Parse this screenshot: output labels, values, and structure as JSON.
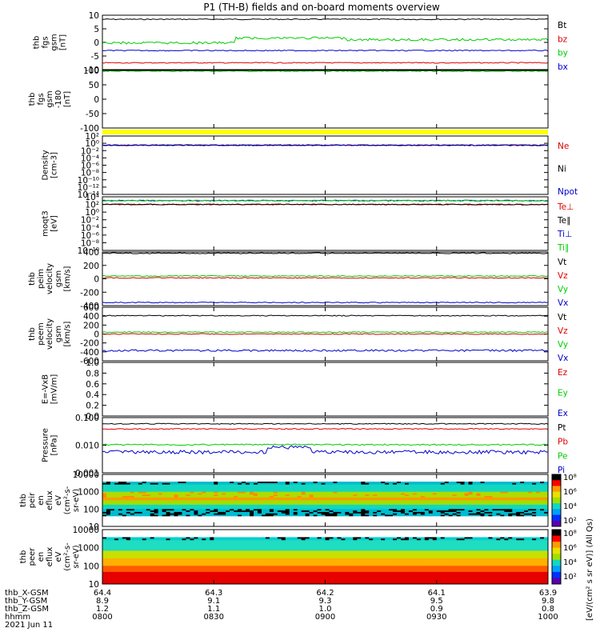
{
  "chart_data": {
    "type": "line",
    "title": "P1 (TH-B) fields and on-board moments overview",
    "colors": {
      "black": "#000000",
      "red": "#dd0000",
      "green": "#00cc00",
      "blue": "#0000cc",
      "yellow": "#ffff00"
    },
    "x_axis": {
      "ticks": [
        "0800",
        "0830",
        "0900",
        "0930",
        "1000"
      ],
      "ephemeris": [
        {
          "label": "thb_X-GSM",
          "values": [
            "64.4",
            "64.3",
            "64.2",
            "64.1",
            "63.9"
          ]
        },
        {
          "label": "thb_Y-GSM",
          "values": [
            "8.9",
            "9.1",
            "9.3",
            "9.5",
            "9.8"
          ]
        },
        {
          "label": "thb_Z-GSM",
          "values": [
            "1.2",
            "1.1",
            "1.0",
            "0.9",
            "0.8"
          ]
        },
        {
          "label": "hhmm",
          "values": [
            "0800",
            "0830",
            "0900",
            "0930",
            "1000"
          ]
        }
      ],
      "date": "2021 Jun 11"
    },
    "panels": [
      {
        "id": "fgs",
        "ylabel_lines": [
          "thb",
          "fgs",
          "gsm",
          "[nT]"
        ],
        "yscale": "linear",
        "ylim": [
          -10,
          10
        ],
        "yticks": [
          "10",
          "5",
          "0",
          "-5",
          "-10"
        ],
        "series": [
          {
            "name": "Bt",
            "color": "#000000",
            "level": 8.5
          },
          {
            "name": "bz",
            "color": "#dd0000",
            "level": -7.5
          },
          {
            "name": "by",
            "color": "#00cc00",
            "level": 1.0
          },
          {
            "name": "bx",
            "color": "#0000cc",
            "level": -3.0
          }
        ]
      },
      {
        "id": "fgs_dsl",
        "ylabel_lines": [
          "thb",
          "fgs",
          "gsm",
          "-180",
          "[nT]"
        ],
        "yscale": "linear",
        "ylim": [
          -125,
          100
        ],
        "yticks": [
          "100",
          "50",
          "0",
          "-50",
          "-100"
        ],
        "series": [
          {
            "name": "",
            "color": "#00cc00",
            "level": 97
          }
        ]
      },
      {
        "id": "density",
        "ylabel_lines": [
          "Density",
          "[cm-3]"
        ],
        "yscale": "log",
        "yticks": [
          "10²",
          "10⁰",
          "10⁻²",
          "10⁻⁴",
          "10⁻⁶",
          "10⁻⁸",
          "10⁻¹⁰",
          "10⁻¹²",
          "10⁻¹⁴"
        ],
        "series": [
          {
            "name": "Ne",
            "color": "#dd0000",
            "level": 0.3
          },
          {
            "name": "Ni",
            "color": "#000000",
            "level": 0.3
          },
          {
            "name": "Npot",
            "color": "#0000cc",
            "level": 0.3
          }
        ]
      },
      {
        "id": "temp",
        "ylabel_lines": [
          "moqt3",
          "[eV]"
        ],
        "yscale": "log",
        "yticks": [
          "10⁴",
          "10²",
          "10⁰",
          "10⁻²",
          "10⁻⁴",
          "10⁻⁶",
          "10⁻⁸",
          "10⁻¹⁰"
        ],
        "series": [
          {
            "name": "Te⊥",
            "color": "#dd0000",
            "level": 100
          },
          {
            "name": "Te∥",
            "color": "#000000",
            "level": 100
          },
          {
            "name": "Ti⊥",
            "color": "#0000cc",
            "level": 1000
          },
          {
            "name": "Ti∥",
            "color": "#00cc00",
            "level": 1000
          }
        ]
      },
      {
        "id": "peim_vel",
        "ylabel_lines": [
          "thb",
          "peim",
          "velocity",
          "gsm",
          "[km/s]"
        ],
        "yscale": "linear",
        "ylim": [
          -450,
          420
        ],
        "yticks": [
          "400",
          "200",
          "0",
          "-200",
          "-400"
        ],
        "series": [
          {
            "name": "Vt",
            "color": "#000000",
            "level": 400
          },
          {
            "name": "Vz",
            "color": "#dd0000",
            "level": 0
          },
          {
            "name": "Vy",
            "color": "#00cc00",
            "level": 30
          },
          {
            "name": "Vx",
            "color": "#0000cc",
            "level": -400
          }
        ]
      },
      {
        "id": "peem_vel",
        "ylabel_lines": [
          "thb",
          "peem",
          "velocity",
          "gsm",
          "[km/s]"
        ],
        "yscale": "linear",
        "ylim": [
          -600,
          600
        ],
        "yticks": [
          "600",
          "400",
          "200",
          "0",
          "-200",
          "-400",
          "-600"
        ],
        "series": [
          {
            "name": "Vt",
            "color": "#000000",
            "level": 410
          },
          {
            "name": "Vz",
            "color": "#dd0000",
            "level": 0
          },
          {
            "name": "Vy",
            "color": "#00cc00",
            "level": 40
          },
          {
            "name": "Vx",
            "color": "#0000cc",
            "level": -370
          }
        ]
      },
      {
        "id": "efield",
        "ylabel_lines": [
          "E=-VxB",
          "[mV/m]"
        ],
        "yscale": "linear",
        "ylim": [
          0,
          1
        ],
        "yticks": [
          "1.0",
          "0.8",
          "0.6",
          "0.4",
          "0.2",
          "0.0"
        ],
        "series": [
          {
            "name": "Ez",
            "color": "#dd0000",
            "level": null
          },
          {
            "name": "Ey",
            "color": "#00cc00",
            "level": null
          },
          {
            "name": "Ex",
            "color": "#0000cc",
            "level": null
          }
        ]
      },
      {
        "id": "pressure",
        "ylabel_lines": [
          "Pressure",
          "[nPa]"
        ],
        "yscale": "log",
        "ylim": [
          0.001,
          0.12
        ],
        "yticks": [
          "0.100",
          "0.010",
          "0.001"
        ],
        "series": [
          {
            "name": "Pt",
            "color": "#000000",
            "level": 0.07
          },
          {
            "name": "Pb",
            "color": "#dd0000",
            "level": 0.045
          },
          {
            "name": "Pe",
            "color": "#00cc00",
            "level": 0.0115
          },
          {
            "name": "Pi",
            "color": "#0000cc",
            "level": 0.006
          }
        ]
      },
      {
        "id": "peir_spec",
        "type": "heatmap",
        "ylabel_lines": [
          "thb",
          "peir",
          "en",
          "eflux",
          "eV",
          "(cm²-s-",
          "sr-eV)"
        ],
        "yscale": "log",
        "ylim": [
          5,
          25000
        ],
        "yticks": [
          "10000",
          "1000",
          "100",
          "10"
        ]
      },
      {
        "id": "peer_spec",
        "type": "heatmap",
        "ylabel_lines": [
          "thb",
          "peer",
          "en",
          "eflux",
          "eV",
          "(cm²-s-",
          "sr-eV)"
        ],
        "yscale": "log",
        "ylim": [
          5,
          25000
        ],
        "yticks": [
          "10000",
          "1000",
          "100",
          "10"
        ]
      }
    ],
    "colorbar": {
      "ticks": [
        "10⁸",
        "10⁶",
        "10⁴",
        "10²",
        "10⁸",
        "10⁶",
        "10⁴",
        "10²"
      ],
      "label": "[eV/(cm² s sr eV)] (All Qs)"
    }
  }
}
